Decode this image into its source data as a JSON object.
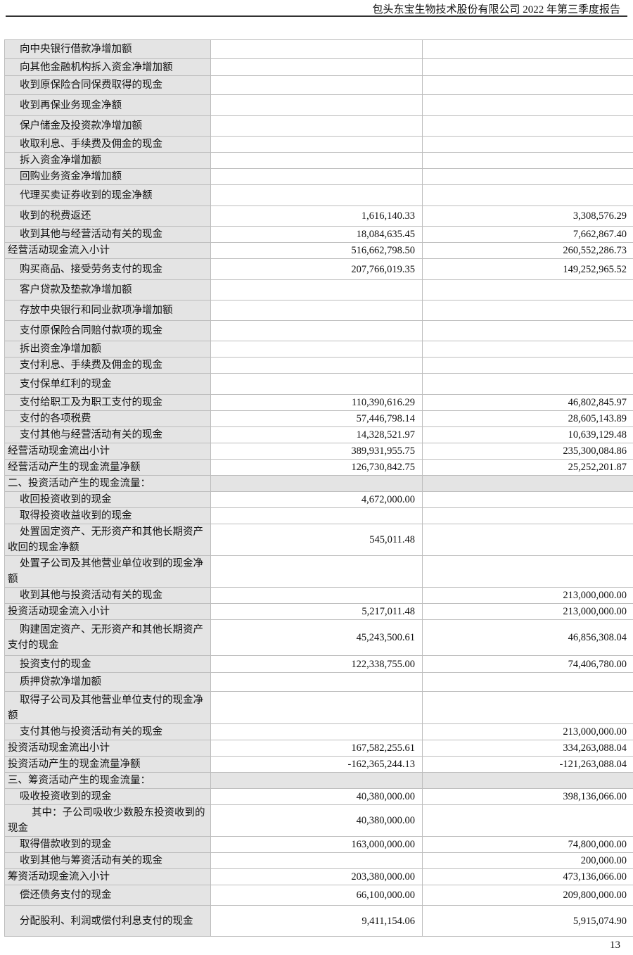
{
  "header": {
    "title": "包头东宝生物技术股份有限公司 2022 年第三季度报告"
  },
  "page_number": "13",
  "rows": [
    {
      "label": "向中央银行借款净增加额",
      "indent": 1,
      "v1": "",
      "v2": ""
    },
    {
      "label": "向其他金融机构拆入资金净增加额",
      "indent": 1,
      "v1": "",
      "v2": ""
    },
    {
      "label": "收到原保险合同保费取得的现金",
      "indent": 1,
      "v1": "",
      "v2": ""
    },
    {
      "label": "收到再保业务现金净额",
      "indent": 1,
      "v1": "",
      "v2": ""
    },
    {
      "label": "保户储金及投资款净增加额",
      "indent": 1,
      "v1": "",
      "v2": ""
    },
    {
      "label": "收取利息、手续费及佣金的现金",
      "indent": 1,
      "v1": "",
      "v2": ""
    },
    {
      "label": "拆入资金净增加额",
      "indent": 1,
      "v1": "",
      "v2": ""
    },
    {
      "label": "回购业务资金净增加额",
      "indent": 1,
      "v1": "",
      "v2": ""
    },
    {
      "label": "代理买卖证券收到的现金净额",
      "indent": 1,
      "v1": "",
      "v2": ""
    },
    {
      "label": "收到的税费返还",
      "indent": 1,
      "v1": "1,616,140.33",
      "v2": "3,308,576.29"
    },
    {
      "label": "收到其他与经营活动有关的现金",
      "indent": 1,
      "v1": "18,084,635.45",
      "v2": "7,662,867.40"
    },
    {
      "label": "经营活动现金流入小计",
      "indent": 0,
      "v1": "516,662,798.50",
      "v2": "260,552,286.73"
    },
    {
      "label": "购买商品、接受劳务支付的现金",
      "indent": 1,
      "v1": "207,766,019.35",
      "v2": "149,252,965.52"
    },
    {
      "label": "客户贷款及垫款净增加额",
      "indent": 1,
      "v1": "",
      "v2": ""
    },
    {
      "label": "存放中央银行和同业款项净增加额",
      "indent": 1,
      "v1": "",
      "v2": ""
    },
    {
      "label": "支付原保险合同赔付款项的现金",
      "indent": 1,
      "v1": "",
      "v2": ""
    },
    {
      "label": "拆出资金净增加额",
      "indent": 1,
      "v1": "",
      "v2": ""
    },
    {
      "label": "支付利息、手续费及佣金的现金",
      "indent": 1,
      "v1": "",
      "v2": ""
    },
    {
      "label": "支付保单红利的现金",
      "indent": 1,
      "v1": "",
      "v2": ""
    },
    {
      "label": "支付给职工及为职工支付的现金",
      "indent": 1,
      "v1": "110,390,616.29",
      "v2": "46,802,845.97"
    },
    {
      "label": "支付的各项税费",
      "indent": 1,
      "v1": "57,446,798.14",
      "v2": "28,605,143.89"
    },
    {
      "label": "支付其他与经营活动有关的现金",
      "indent": 1,
      "v1": "14,328,521.97",
      "v2": "10,639,129.48"
    },
    {
      "label": "经营活动现金流出小计",
      "indent": 0,
      "v1": "389,931,955.75",
      "v2": "235,300,084.86"
    },
    {
      "label": "经营活动产生的现金流量净额",
      "indent": 0,
      "v1": "126,730,842.75",
      "v2": "25,252,201.87"
    },
    {
      "label": "二、投资活动产生的现金流量：",
      "indent": 0,
      "section": true,
      "v1": "",
      "v2": ""
    },
    {
      "label": "收回投资收到的现金",
      "indent": 1,
      "v1": "4,672,000.00",
      "v2": ""
    },
    {
      "label": "取得投资收益收到的现金",
      "indent": 1,
      "v1": "",
      "v2": ""
    },
    {
      "label": "处置固定资产、无形资产和其他长期资产收回的现金净额",
      "indent": 1,
      "v1": "545,011.48",
      "v2": ""
    },
    {
      "label": "处置子公司及其他营业单位收到的现金净额",
      "indent": 1,
      "v1": "",
      "v2": ""
    },
    {
      "label": "收到其他与投资活动有关的现金",
      "indent": 1,
      "v1": "",
      "v2": "213,000,000.00"
    },
    {
      "label": "投资活动现金流入小计",
      "indent": 0,
      "v1": "5,217,011.48",
      "v2": "213,000,000.00"
    },
    {
      "label": "购建固定资产、无形资产和其他长期资产支付的现金",
      "indent": 1,
      "v1": "45,243,500.61",
      "v2": "46,856,308.04"
    },
    {
      "label": "投资支付的现金",
      "indent": 1,
      "v1": "122,338,755.00",
      "v2": "74,406,780.00"
    },
    {
      "label": "质押贷款净增加额",
      "indent": 1,
      "v1": "",
      "v2": ""
    },
    {
      "label": "取得子公司及其他营业单位支付的现金净额",
      "indent": 1,
      "v1": "",
      "v2": ""
    },
    {
      "label": "支付其他与投资活动有关的现金",
      "indent": 1,
      "v1": "",
      "v2": "213,000,000.00"
    },
    {
      "label": "投资活动现金流出小计",
      "indent": 0,
      "v1": "167,582,255.61",
      "v2": "334,263,088.04"
    },
    {
      "label": "投资活动产生的现金流量净额",
      "indent": 0,
      "v1": "-162,365,244.13",
      "v2": "-121,263,088.04"
    },
    {
      "label": "三、筹资活动产生的现金流量：",
      "indent": 0,
      "section": true,
      "v1": "",
      "v2": ""
    },
    {
      "label": "吸收投资收到的现金",
      "indent": 1,
      "v1": "40,380,000.00",
      "v2": "398,136,066.00"
    },
    {
      "label": "其中：子公司吸收少数股东投资收到的现金",
      "indent": 2,
      "v1": "40,380,000.00",
      "v2": ""
    },
    {
      "label": "取得借款收到的现金",
      "indent": 1,
      "v1": "163,000,000.00",
      "v2": "74,800,000.00"
    },
    {
      "label": "收到其他与筹资活动有关的现金",
      "indent": 1,
      "v1": "",
      "v2": "200,000.00"
    },
    {
      "label": "筹资活动现金流入小计",
      "indent": 0,
      "v1": "203,380,000.00",
      "v2": "473,136,066.00"
    },
    {
      "label": "偿还债务支付的现金",
      "indent": 1,
      "v1": "66,100,000.00",
      "v2": "209,800,000.00"
    },
    {
      "label": "分配股利、利润或偿付利息支付的现金",
      "indent": 1,
      "v1": "9,411,154.06",
      "v2": "5,915,074.90"
    }
  ]
}
